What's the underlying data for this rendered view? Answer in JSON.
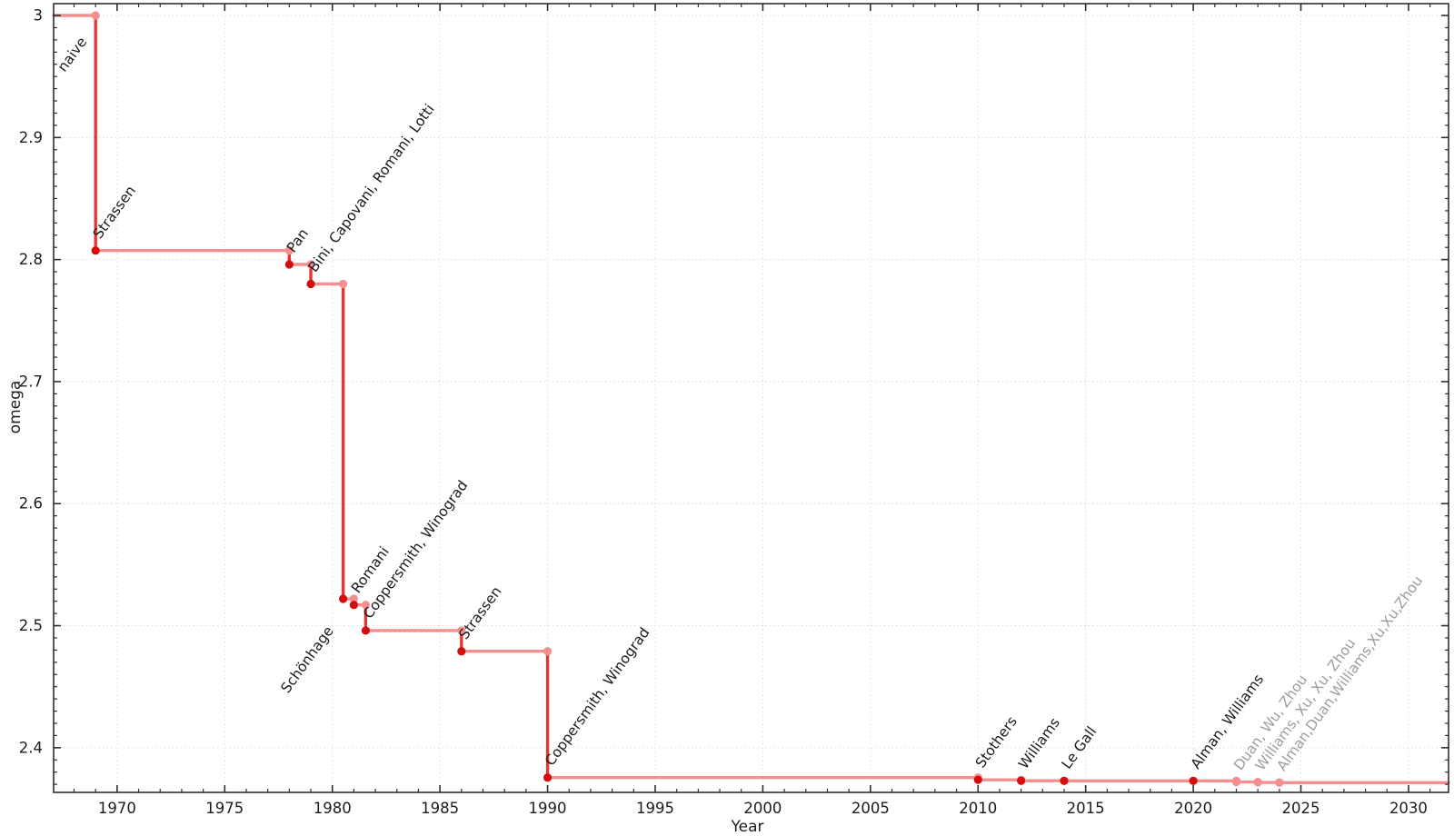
{
  "chart_data": {
    "type": "line",
    "step_style": "post",
    "title": "",
    "xlabel": "Year",
    "ylabel": "omega",
    "xlim": [
      1967.05,
      2031.86
    ],
    "ylim": [
      2.3634,
      3.0097
    ],
    "x_major_ticks": [
      1970,
      1975,
      1980,
      1985,
      1990,
      1995,
      2000,
      2005,
      2010,
      2015,
      2020,
      2025,
      2030
    ],
    "x_minor_step": 1,
    "y_major_ticks": [
      2.4,
      2.5,
      2.6,
      2.7,
      2.8,
      2.9,
      3
    ],
    "y_tick_label_format": [
      "2.4",
      "2.5",
      "2.6",
      "2.7",
      "2.8",
      "2.9",
      "3"
    ],
    "y_minor_step": 0.01,
    "grid": "dotted-on-major-ticks",
    "legend": false,
    "initial": {
      "label": "naive",
      "omega": 3
    },
    "events": [
      {
        "label": "Strassen",
        "year": 1969,
        "x": 1969,
        "omega": 2.8074,
        "muted": false
      },
      {
        "label": "Pan",
        "year": 1978,
        "x": 1978,
        "omega": 2.796,
        "muted": false
      },
      {
        "label": "Bini, Capovani, Romani, Lotti",
        "year": 1979,
        "x": 1979,
        "omega": 2.78,
        "muted": false
      },
      {
        "label": "Schönhage",
        "year": 1981,
        "x": 1980.5,
        "omega": 2.522,
        "muted": false,
        "label_side": "below-left"
      },
      {
        "label": "Romani",
        "year": 1982,
        "x": 1981.0,
        "omega": 2.517,
        "muted": false
      },
      {
        "label": "Coppersmith, Winograd",
        "year": 1982,
        "x": 1981.55,
        "omega": 2.496,
        "muted": false
      },
      {
        "label": "Strassen",
        "year": 1986,
        "x": 1986,
        "omega": 2.479,
        "muted": false
      },
      {
        "label": "Coppersmith, Winograd",
        "year": 1990,
        "x": 1990,
        "omega": 2.3755,
        "muted": false
      },
      {
        "label": "Stothers",
        "year": 2010,
        "x": 2010,
        "omega": 2.3737,
        "muted": false
      },
      {
        "label": "Williams",
        "year": 2012,
        "x": 2012,
        "omega": 2.3729,
        "muted": false
      },
      {
        "label": "Le Gall",
        "year": 2014,
        "x": 2014,
        "omega": 2.3728639,
        "muted": false
      },
      {
        "label": "Alman, Williams",
        "year": 2020,
        "x": 2020,
        "omega": 2.3728596,
        "muted": false
      },
      {
        "label": "Duan, Wu, Zhou",
        "year": 2022,
        "x": 2022,
        "omega": 2.371866,
        "muted": true
      },
      {
        "label": "Williams, Xu, Xu, Zhou",
        "year": 2023,
        "x": 2023,
        "omega": 2.371552,
        "muted": true
      },
      {
        "label": "Alman,Duan,Williams,Xu,Xu,Zhou",
        "year": 2024,
        "x": 2024,
        "omega": 2.371339,
        "muted": true
      }
    ],
    "colors": {
      "step_line": "#f48f8f",
      "drop_line": "#e93434",
      "marker": "#d40e0e",
      "corner_marker": "#f48f8f",
      "muted_marker": "#f48f8f",
      "label": "#1c1c1c",
      "muted_label": "#9e9e9e",
      "grid": "#dedede",
      "axis": "#2e2e2e",
      "tick_label": "#1c1c1c",
      "background": "#ffffff"
    }
  }
}
